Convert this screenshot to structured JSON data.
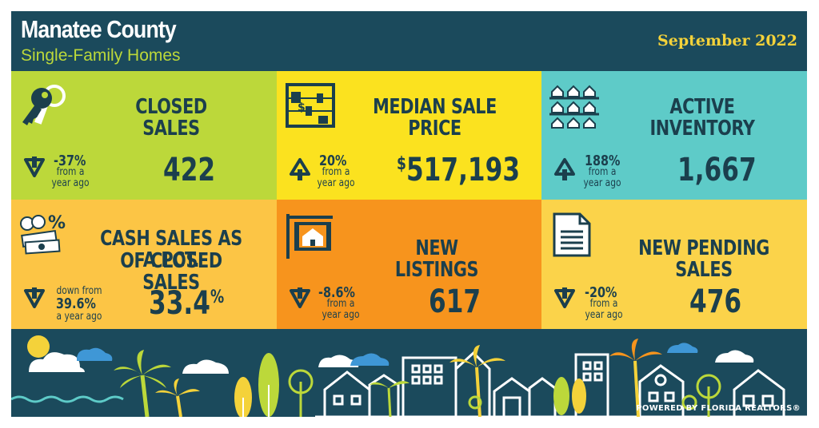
{
  "header": {
    "title": "Manatee County",
    "subtitle": "Single-Family Homes",
    "date": "September 2022"
  },
  "tiles": [
    {
      "title": "CLOSED SALES",
      "value": "422",
      "change": "-37%",
      "note_line1": "from a",
      "note_line2": "year ago",
      "direction": "down",
      "color": "#bcd83a",
      "icon": "keys-icon"
    },
    {
      "title": "MEDIAN SALE PRICE",
      "value_prefix": "$",
      "value": "517,193",
      "change": "20%",
      "note_line1": "from a",
      "note_line2": "year ago",
      "direction": "up",
      "color": "#fbe21f",
      "icon": "abacus-icon"
    },
    {
      "title": "ACTIVE INVENTORY",
      "value": "1,667",
      "change": "188%",
      "note_line1": "from a",
      "note_line2": "year ago",
      "direction": "up",
      "color": "#5ecbc8",
      "icon": "houses-grid-icon"
    },
    {
      "title_line1": "CASH SALES AS A PCT.",
      "title_line2": "OF CLOSED SALES",
      "value": "33.4",
      "value_suffix": "%",
      "change_line1": "down from",
      "change": "39.6%",
      "note_line2": "a year ago",
      "direction": "down",
      "color": "#fcc545",
      "icon": "cash-icon"
    },
    {
      "title": "NEW LISTINGS",
      "value": "617",
      "change": "-8.6%",
      "note_line1": "from a",
      "note_line2": "year ago",
      "direction": "down",
      "color": "#f7941d",
      "icon": "listing-sign-icon"
    },
    {
      "title": "NEW PENDING SALES",
      "value": "476",
      "change": "-20%",
      "note_line1": "from a",
      "note_line2": "year ago",
      "direction": "down",
      "color": "#fbd34a",
      "icon": "document-icon"
    }
  ],
  "footer": {
    "powered_by": "POWERED BY FLORIDA REALTORS®"
  }
}
